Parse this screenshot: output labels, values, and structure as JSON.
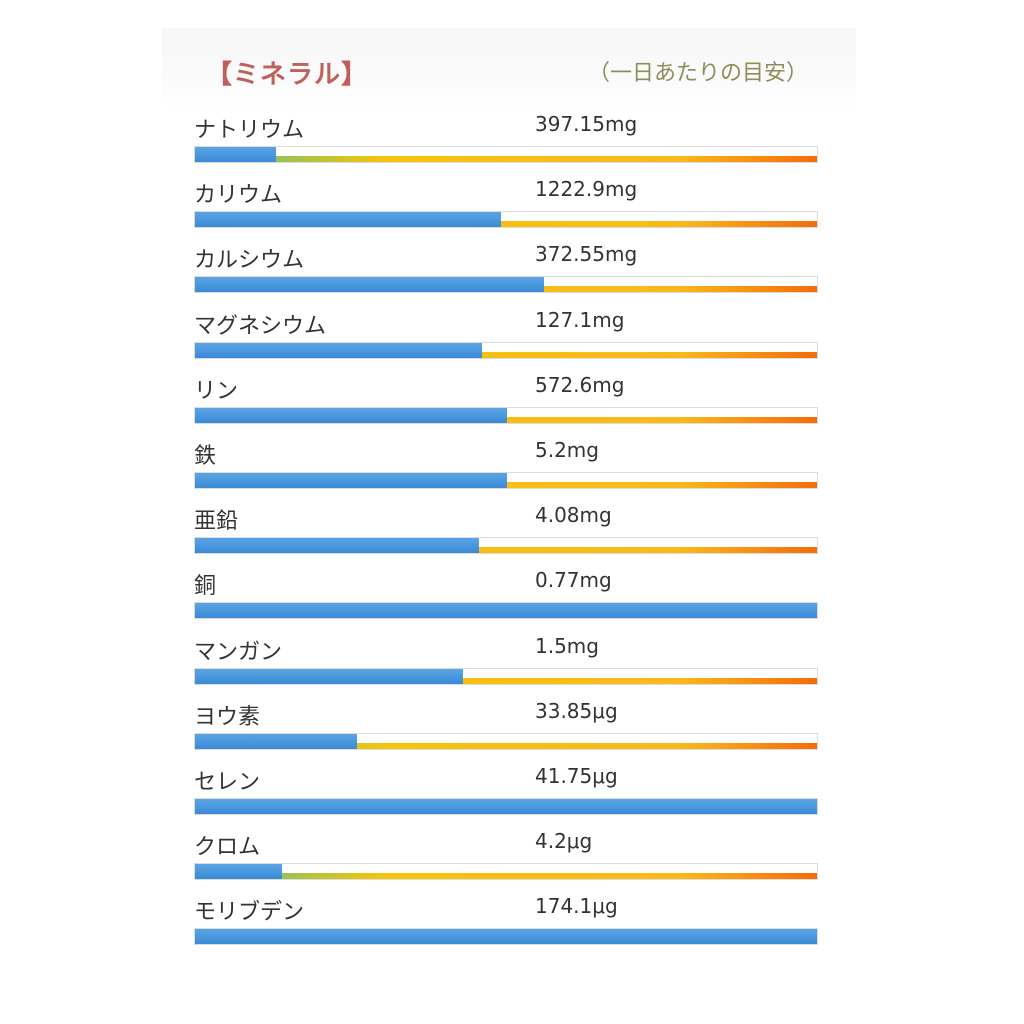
{
  "header": {
    "title": "【ミネラル】",
    "note": "（一日あたりの目安）"
  },
  "colors": {
    "title": "#c0605c",
    "note": "#8c8f5c",
    "fill": "#3b8ad6",
    "scale_start": "#46a34d",
    "scale_mid": "#f5c40c",
    "scale_end": "#f46c0a"
  },
  "chart_data": {
    "type": "bar",
    "orientation": "horizontal",
    "title": "【ミネラル】",
    "subtitle": "（一日あたりの目安）",
    "categories": [
      "ナトリウム",
      "カリウム",
      "カルシウム",
      "マグネシウム",
      "リン",
      "鉄",
      "亜鉛",
      "銅",
      "マンガン",
      "ヨウ素",
      "セレン",
      "クロム",
      "モリブデン"
    ],
    "value_labels": [
      "397.15mg",
      "1222.9mg",
      "372.55mg",
      "127.1mg",
      "572.6mg",
      "5.2mg",
      "4.08mg",
      "0.77mg",
      "1.5mg",
      "33.85μg",
      "41.75μg",
      "4.2μg",
      "174.1μg"
    ],
    "fraction_of_daily_target": [
      0.13,
      0.49,
      0.56,
      0.46,
      0.5,
      0.5,
      0.455,
      1.0,
      0.43,
      0.26,
      1.0,
      0.14,
      1.0
    ],
    "xlim": [
      0,
      1
    ]
  }
}
